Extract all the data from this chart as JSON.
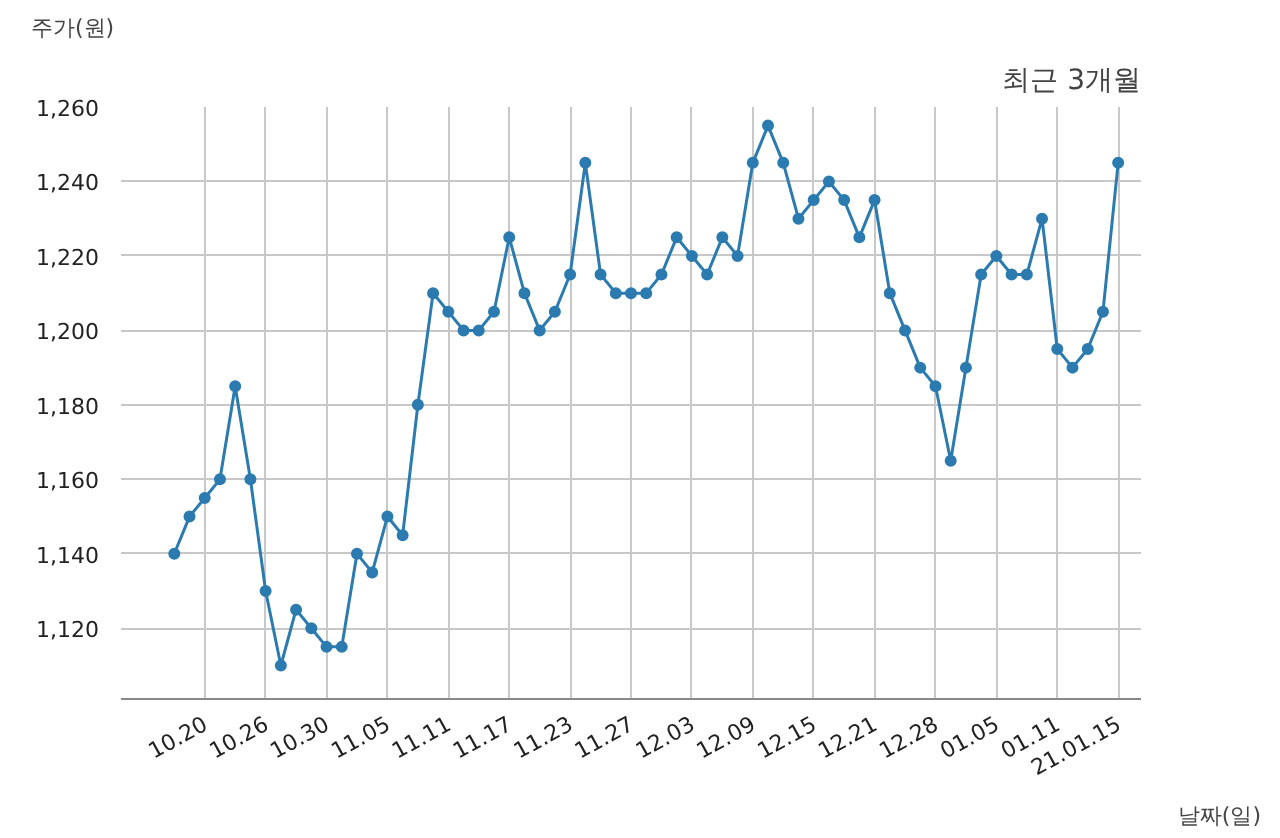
{
  "chart_data": {
    "type": "line",
    "title": "최근 3개월",
    "xlabel": "날짜(일)",
    "ylabel": "주가(원)",
    "categories": [
      null,
      null,
      "10.20",
      null,
      null,
      null,
      "10.26",
      null,
      null,
      null,
      "10.30",
      null,
      null,
      null,
      "11.05",
      null,
      null,
      null,
      "11.11",
      null,
      null,
      null,
      "11.17",
      null,
      null,
      null,
      "11.23",
      null,
      null,
      null,
      "11.27",
      null,
      null,
      null,
      "12.03",
      null,
      null,
      null,
      "12.09",
      null,
      null,
      null,
      "12.15",
      null,
      null,
      null,
      "12.21",
      null,
      null,
      null,
      "12.28",
      null,
      null,
      null,
      "01.05",
      null,
      null,
      null,
      "01.11",
      null,
      null,
      null,
      "21.01.15"
    ],
    "series": [
      {
        "color": "#2b7bb0",
        "values": [
          1140,
          1150,
          1155,
          1160,
          1185,
          1160,
          1130,
          1110,
          1125,
          1120,
          1115,
          1115,
          1140,
          1135,
          1150,
          1145,
          1180,
          1210,
          1205,
          1200,
          1200,
          1205,
          1225,
          1210,
          1200,
          1205,
          1215,
          1245,
          1215,
          1210,
          1210,
          1210,
          1215,
          1225,
          1220,
          1215,
          1225,
          1220,
          1245,
          1255,
          1245,
          1230,
          1235,
          1240,
          1235,
          1225,
          1235,
          1210,
          1200,
          1190,
          1185,
          1165,
          1190,
          1215,
          1220,
          1215,
          1215,
          1230,
          1195,
          1190,
          1195,
          1205,
          1245
        ]
      }
    ],
    "ylim": [
      1101,
      1260
    ],
    "yticks": [
      {
        "value": 1120,
        "label": "1,120"
      },
      {
        "value": 1140,
        "label": "1,140"
      },
      {
        "value": 1160,
        "label": "1,160"
      },
      {
        "value": 1180,
        "label": "1,180"
      },
      {
        "value": 1200,
        "label": "1,200"
      },
      {
        "value": 1220,
        "label": "1,220"
      },
      {
        "value": 1240,
        "label": "1,240"
      },
      {
        "value": 1260,
        "label": "1,260"
      }
    ],
    "grid": true,
    "marker": "circle",
    "line_style": "solid"
  }
}
